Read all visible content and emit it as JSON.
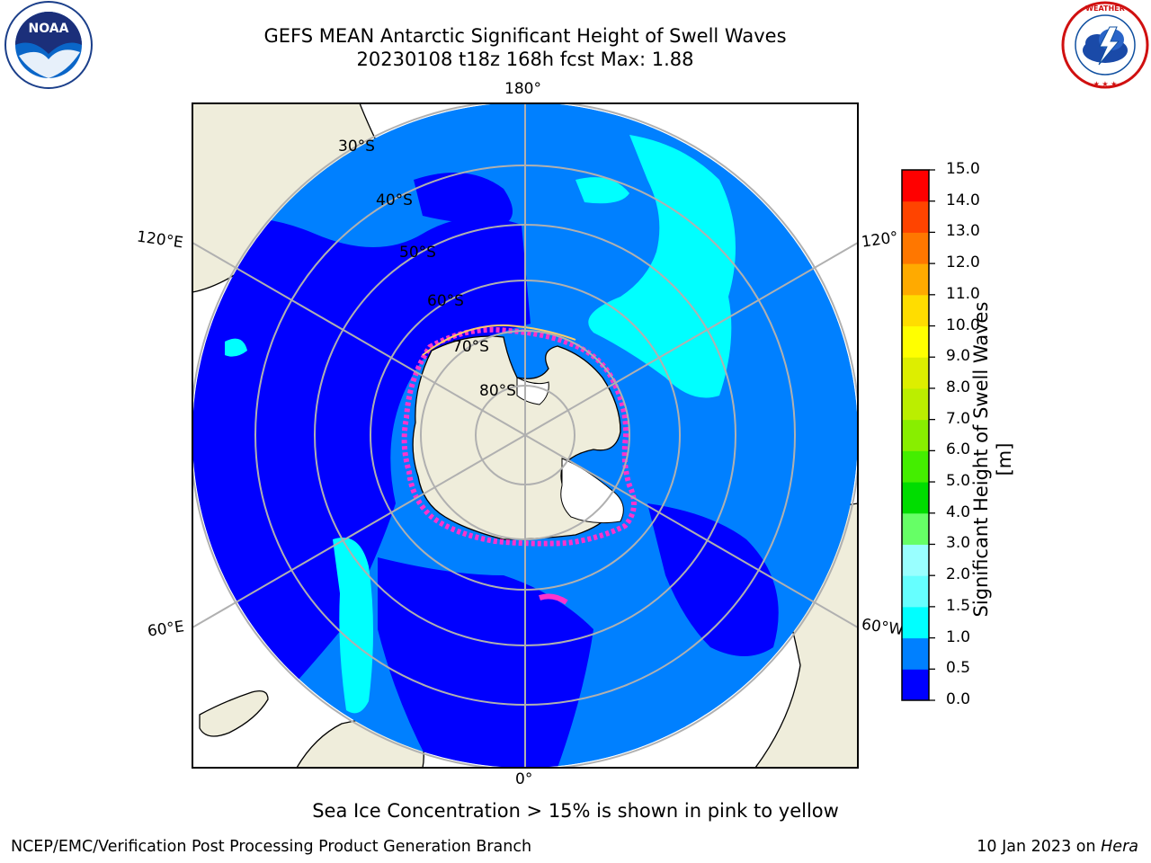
{
  "title": {
    "line1": "GEFS MEAN Antarctic Significant Height of Swell Waves",
    "line2": "20230108 t18z 168h fcst   Max: 1.88"
  },
  "logos": {
    "left": {
      "icon": "noaa-logo-icon",
      "text": "NOAA"
    },
    "right": {
      "icon": "national-weather-service-logo-icon",
      "text": "NATIONAL WEATHER SERVICE"
    }
  },
  "map": {
    "projection": "south-polar-stereographic",
    "longitude_labels": [
      "180°",
      "120°E",
      "120°",
      "60°E",
      "60°W",
      "0°"
    ],
    "latitude_labels": [
      "30°S",
      "40°S",
      "50°S",
      "60°S",
      "70°S",
      "80°S"
    ],
    "colors": {
      "land": "#efeddb",
      "ocean_low": "#0000ff",
      "ocean_mid": "#0080ff",
      "ocean_high": "#00ffff",
      "ice_edge": "#ff33cc",
      "gridline": "#b0b0b0"
    }
  },
  "colorbar": {
    "label": "Significant Height of Swell Waves [m]",
    "ticks": [
      "0.0",
      "0.5",
      "1.0",
      "1.5",
      "2.0",
      "3.0",
      "4.0",
      "5.0",
      "6.0",
      "7.0",
      "8.0",
      "9.0",
      "10.0",
      "11.0",
      "12.0",
      "13.0",
      "14.0",
      "15.0"
    ],
    "colors": [
      "#0000ff",
      "#0080ff",
      "#00ffff",
      "#66ffff",
      "#99ffff",
      "#66ff66",
      "#00dd00",
      "#44ee00",
      "#88ee00",
      "#bbee00",
      "#ddee00",
      "#ffff00",
      "#ffdd00",
      "#ffaa00",
      "#ff7700",
      "#ff4400",
      "#ff0000"
    ]
  },
  "caption": "Sea Ice Concentration > 15% is shown in pink to yellow",
  "footer": {
    "left": "NCEP/EMC/Verification Post Processing Product Generation Branch",
    "right_date": "10 Jan 2023 on ",
    "right_machine": "Hera"
  }
}
